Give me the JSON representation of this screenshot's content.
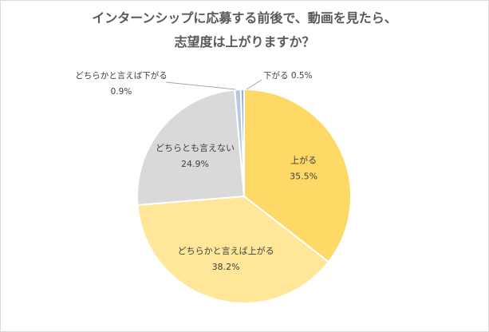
{
  "chart_data": {
    "type": "pie",
    "title_lines": [
      "インターンシップに応募する前後で、動画を見たら、",
      "志望度は上がりますか？"
    ],
    "slices": [
      {
        "label": "上がる",
        "value": 35.5,
        "value_label": "35.5%",
        "color": "#FFD966"
      },
      {
        "label": "どちらかと言えば上がる",
        "value": 38.2,
        "value_label": "38.2%",
        "color": "#FFE699"
      },
      {
        "label": "どちらとも言えない",
        "value": 24.9,
        "value_label": "24.9%",
        "color": "#D9D9D9"
      },
      {
        "label": "どちらかと言えば下がる",
        "value": 0.9,
        "value_label": "0.9%",
        "color": "#B4C7E7"
      },
      {
        "label": "下がる",
        "value": 0.5,
        "value_label": "0.5%",
        "color": "#8FAADC"
      }
    ],
    "start_angle": "12 o'clock",
    "direction": "clockwise"
  }
}
